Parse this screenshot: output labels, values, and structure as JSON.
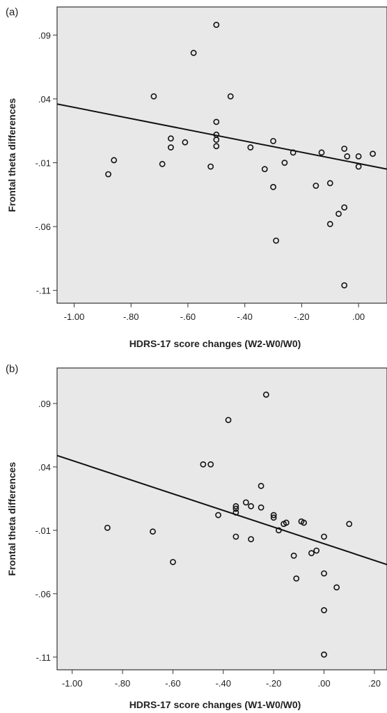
{
  "chart_data": [
    {
      "panel_label": "(a)",
      "type": "scatter",
      "xlabel": "HDRS-17 score changes (W2-W0/W0)",
      "ylabel": "Frontal theta differences",
      "xlim": [
        -1.06,
        0.1
      ],
      "ylim": [
        -0.12,
        0.112
      ],
      "xticks": [
        -1.0,
        -0.8,
        -0.6,
        -0.4,
        -0.2,
        0.0
      ],
      "xtick_labels": [
        "-1.00",
        "-.80",
        "-.60",
        "-.40",
        "-.20",
        ".00"
      ],
      "yticks": [
        0.09,
        0.04,
        -0.01,
        -0.06,
        -0.11
      ],
      "ytick_labels": [
        ".09",
        ".04",
        "-.01",
        "-.06",
        "-.11"
      ],
      "grid": false,
      "background": "#e8e8e8",
      "fit_line": {
        "x": [
          -1.06,
          0.1
        ],
        "y": [
          0.036,
          -0.015
        ]
      },
      "points": [
        {
          "x": -0.88,
          "y": -0.019
        },
        {
          "x": -0.86,
          "y": -0.008
        },
        {
          "x": -0.72,
          "y": 0.042
        },
        {
          "x": -0.69,
          "y": -0.011
        },
        {
          "x": -0.66,
          "y": 0.009
        },
        {
          "x": -0.66,
          "y": 0.002
        },
        {
          "x": -0.61,
          "y": 0.006
        },
        {
          "x": -0.58,
          "y": 0.076
        },
        {
          "x": -0.52,
          "y": -0.013
        },
        {
          "x": -0.5,
          "y": 0.098
        },
        {
          "x": -0.5,
          "y": 0.022
        },
        {
          "x": -0.5,
          "y": 0.012
        },
        {
          "x": -0.5,
          "y": 0.008
        },
        {
          "x": -0.5,
          "y": 0.003
        },
        {
          "x": -0.45,
          "y": 0.042
        },
        {
          "x": -0.38,
          "y": 0.002
        },
        {
          "x": -0.33,
          "y": -0.015
        },
        {
          "x": -0.3,
          "y": 0.007
        },
        {
          "x": -0.3,
          "y": -0.029
        },
        {
          "x": -0.29,
          "y": -0.071
        },
        {
          "x": -0.26,
          "y": -0.01
        },
        {
          "x": -0.23,
          "y": -0.002
        },
        {
          "x": -0.15,
          "y": -0.028
        },
        {
          "x": -0.13,
          "y": -0.002
        },
        {
          "x": -0.1,
          "y": -0.026
        },
        {
          "x": -0.1,
          "y": -0.058
        },
        {
          "x": -0.07,
          "y": -0.05
        },
        {
          "x": -0.05,
          "y": 0.001
        },
        {
          "x": -0.05,
          "y": -0.045
        },
        {
          "x": -0.05,
          "y": -0.106
        },
        {
          "x": -0.04,
          "y": -0.005
        },
        {
          "x": 0.0,
          "y": -0.005
        },
        {
          "x": 0.0,
          "y": -0.013
        },
        {
          "x": 0.05,
          "y": -0.003
        }
      ]
    },
    {
      "panel_label": "(b)",
      "type": "scatter",
      "xlabel": "HDRS-17 score changes (W1-W0/W0)",
      "ylabel": "Frontal theta differences",
      "xlim": [
        -1.06,
        0.25
      ],
      "ylim": [
        -0.12,
        0.118
      ],
      "xticks": [
        -1.0,
        -0.8,
        -0.6,
        -0.4,
        -0.2,
        0.0,
        0.2
      ],
      "xtick_labels": [
        "-1.00",
        "-.80",
        "-.60",
        "-.40",
        "-.20",
        ".00",
        ".20"
      ],
      "yticks": [
        0.09,
        0.04,
        -0.01,
        -0.06,
        -0.11
      ],
      "ytick_labels": [
        ".09",
        ".04",
        "-.01",
        "-.06",
        "-.11"
      ],
      "grid": false,
      "background": "#e8e8e8",
      "fit_line": {
        "x": [
          -1.06,
          0.25
        ],
        "y": [
          0.049,
          -0.037
        ]
      },
      "points": [
        {
          "x": -0.86,
          "y": -0.008
        },
        {
          "x": -0.68,
          "y": -0.011
        },
        {
          "x": -0.6,
          "y": -0.035
        },
        {
          "x": -0.48,
          "y": 0.042
        },
        {
          "x": -0.45,
          "y": 0.042
        },
        {
          "x": -0.38,
          "y": 0.077
        },
        {
          "x": -0.35,
          "y": -0.015
        },
        {
          "x": -0.42,
          "y": 0.002
        },
        {
          "x": -0.35,
          "y": 0.004
        },
        {
          "x": -0.35,
          "y": 0.007
        },
        {
          "x": -0.35,
          "y": 0.009
        },
        {
          "x": -0.31,
          "y": 0.012
        },
        {
          "x": -0.29,
          "y": 0.009
        },
        {
          "x": -0.29,
          "y": -0.017
        },
        {
          "x": -0.25,
          "y": 0.008
        },
        {
          "x": -0.25,
          "y": 0.025
        },
        {
          "x": -0.23,
          "y": 0.097
        },
        {
          "x": -0.2,
          "y": 0.002
        },
        {
          "x": -0.2,
          "y": 0.0
        },
        {
          "x": -0.18,
          "y": -0.01
        },
        {
          "x": -0.16,
          "y": -0.005
        },
        {
          "x": -0.15,
          "y": -0.004
        },
        {
          "x": -0.12,
          "y": -0.03
        },
        {
          "x": -0.11,
          "y": -0.048
        },
        {
          "x": -0.09,
          "y": -0.003
        },
        {
          "x": -0.08,
          "y": -0.004
        },
        {
          "x": -0.05,
          "y": -0.028
        },
        {
          "x": -0.03,
          "y": -0.026
        },
        {
          "x": 0.0,
          "y": -0.015
        },
        {
          "x": 0.0,
          "y": -0.044
        },
        {
          "x": 0.0,
          "y": -0.073
        },
        {
          "x": 0.0,
          "y": -0.108
        },
        {
          "x": 0.05,
          "y": -0.055
        },
        {
          "x": 0.1,
          "y": -0.005
        }
      ]
    }
  ]
}
